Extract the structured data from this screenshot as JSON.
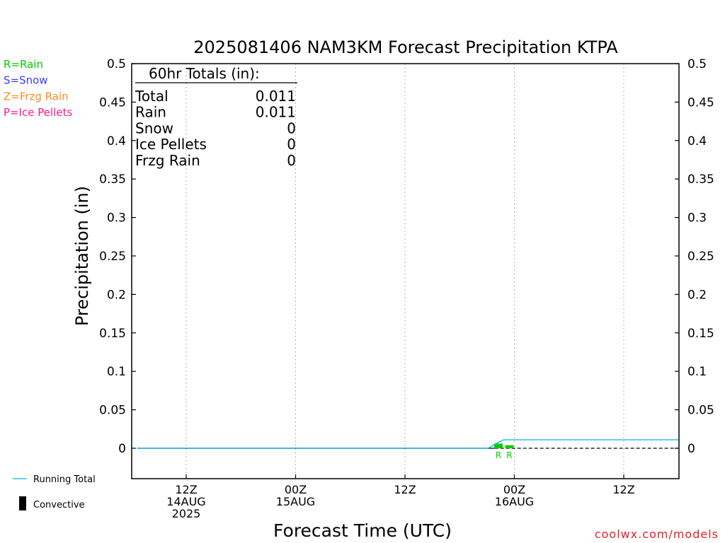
{
  "chart_data": {
    "type": "line",
    "title": "2025081406 NAM3KM Forecast Precipitation KTPA",
    "xlabel": "Forecast Time (UTC)",
    "ylabel": "Precipitation (in)",
    "ylim": [
      0,
      0.5
    ],
    "xlim_hours_from_12Z14AUG": [
      -5,
      45
    ],
    "grid": "vertical dotted",
    "y_ticks": [
      "0.5",
      "0.45",
      "0.4",
      "0.35",
      "0.3",
      "0.25",
      "0.2",
      "0.15",
      "0.1",
      "0.05",
      "0"
    ],
    "x_ticks": [
      {
        "hour": 0,
        "lines": [
          "12Z",
          "14AUG",
          "2025"
        ]
      },
      {
        "hour": 10,
        "lines": [
          "00Z",
          "15AUG"
        ]
      },
      {
        "hour": 20,
        "lines": [
          "12Z"
        ]
      },
      {
        "hour": 30,
        "lines": [
          "00Z",
          "16AUG"
        ]
      },
      {
        "hour": 40,
        "lines": [
          "12Z"
        ]
      }
    ],
    "series": [
      {
        "name": "Running Total",
        "color": "#00b4e6",
        "x_hours": [
          -4.5,
          27.6,
          28.2,
          29.0,
          45.0
        ],
        "values": [
          0,
          0,
          0.005,
          0.011,
          0.011
        ]
      }
    ],
    "precip_bars": [
      {
        "x_hours": 28.55,
        "value": 0.006,
        "type": "R",
        "color": "#00cc00"
      },
      {
        "x_hours": 29.55,
        "value": 0.004,
        "type": "R",
        "color": "#00cc00"
      }
    ],
    "totals_box": {
      "header": "60hr Totals (in):",
      "rows": [
        {
          "label": "Total",
          "value": "0.011"
        },
        {
          "label": "Rain",
          "value": "0.011"
        },
        {
          "label": "Snow",
          "value": "0"
        },
        {
          "label": "Ice Pellets",
          "value": "0"
        },
        {
          "label": "Frzg Rain",
          "value": "0"
        }
      ]
    },
    "type_legend": [
      {
        "text": "R=Rain",
        "color": "#00cc00"
      },
      {
        "text": "S=Snow",
        "color": "#3c3cff"
      },
      {
        "text": "Z=Frzg Rain",
        "color": "#ff8c1a"
      },
      {
        "text": "P=Ice Pellets",
        "color": "#ff1a8c"
      }
    ],
    "bottom_legend": [
      {
        "text": "Running Total",
        "color": "#00b4e6",
        "icon": "line"
      },
      {
        "text": "Convective",
        "color": "#000000",
        "icon": "bar"
      }
    ],
    "credit": {
      "text": "coolwx.com/models",
      "color": "#e61e28"
    }
  }
}
